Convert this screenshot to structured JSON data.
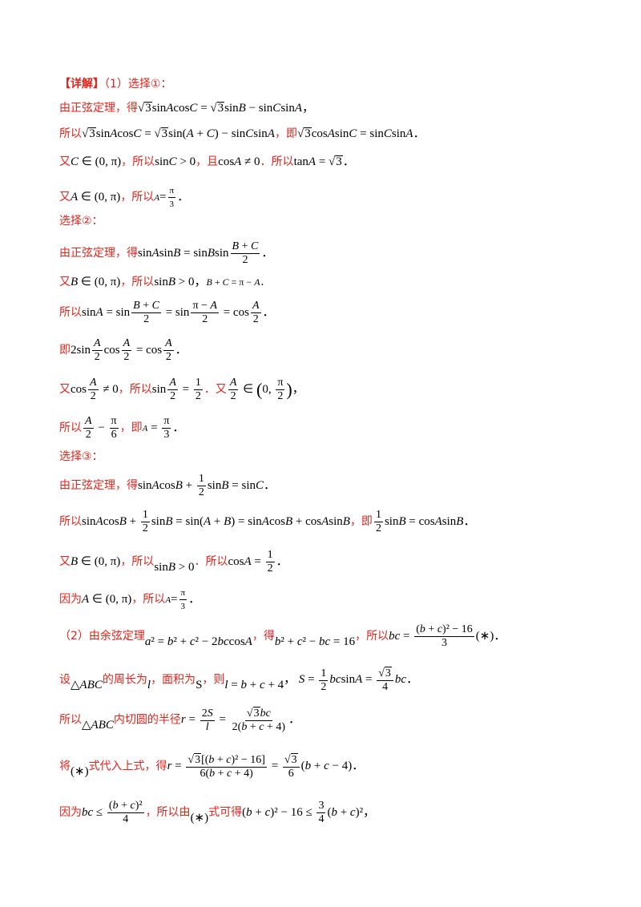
{
  "header": {
    "title": "【详解】",
    "part1": "（1）选择①："
  },
  "part1": {
    "opt1": {
      "l1_text": "由正弦定理，得",
      "l2_text": "所以",
      "l2_mid": "，即",
      "l3_text_a": "又",
      "l3_text_b": "，所以",
      "l3_text_c": "，且",
      "l3_text_d": "．所以",
      "l4_text_a": "又",
      "l4_text_b": "，所以"
    },
    "opt2": {
      "label": "选择②：",
      "l1_text": "由正弦定理，得",
      "l2_text_a": "又",
      "l2_text_b": "，所以",
      "l3_text": "所以",
      "l4_text": "即",
      "l5_text_a": "又",
      "l5_text_b": "，所以",
      "l5_text_c": "．又",
      "l6_text_a": "所以",
      "l6_text_b": "，即"
    },
    "opt3": {
      "label": "选择③：",
      "l1_text": "由正弦定理，得",
      "l2_text": "所以",
      "l2_mid": "，即",
      "l3_text_a": "又",
      "l3_text_b": "，所以",
      "l3_text_c": "．所以",
      "l4_text_a": "因为",
      "l4_text_b": "，所以"
    }
  },
  "part2": {
    "l1_text_a": "（2）由余弦定理",
    "l1_text_b": "，得",
    "l1_text_c": "，所以",
    "l2_text_a": "设",
    "l2_text_b": "的周长为",
    "l2_text_c": "，面积为",
    "l2_text_d": "，则",
    "l3_text_a": "所以",
    "l3_text_b": "内切圆的半径",
    "l4_text_a": "将",
    "l4_text_b": "式代入上式，得",
    "l5_text_a": "因为",
    "l5_text_b": "，所以由",
    "l5_text_c": "式可得"
  }
}
